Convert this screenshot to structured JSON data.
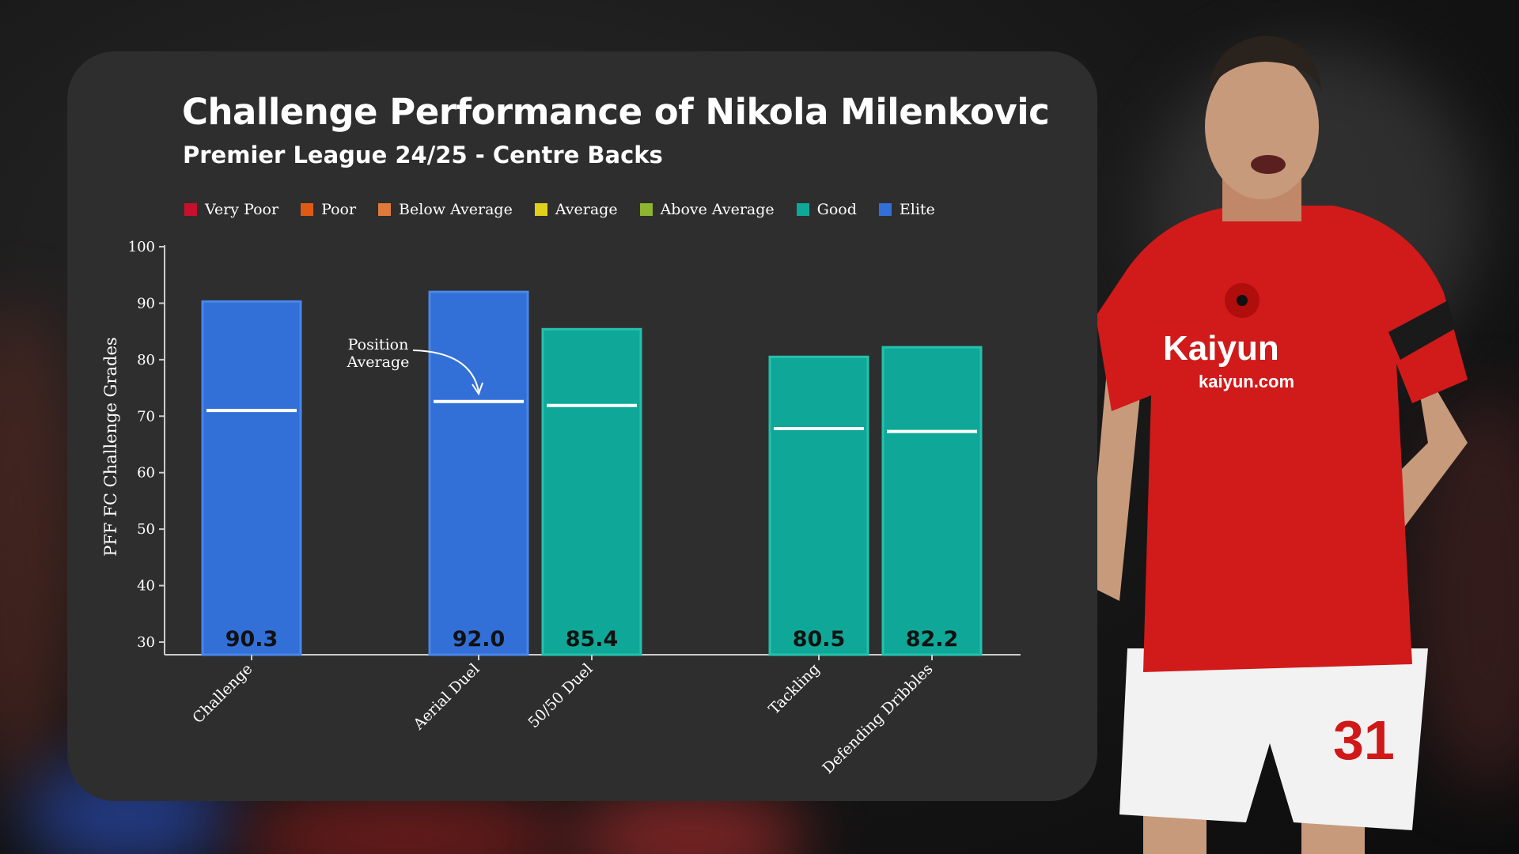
{
  "title": "Challenge Performance of Nikola Milenkovic",
  "subtitle": "Premier League 24/25 - Centre Backs",
  "legend": [
    {
      "label": "Very Poor",
      "color": "#c8102e"
    },
    {
      "label": "Poor",
      "color": "#e05a14"
    },
    {
      "label": "Below Average",
      "color": "#e07a3a"
    },
    {
      "label": "Average",
      "color": "#e2cf1b"
    },
    {
      "label": "Above Average",
      "color": "#8db52f"
    },
    {
      "label": "Good",
      "color": "#0fa898"
    },
    {
      "label": "Elite",
      "color": "#3270d8"
    }
  ],
  "annotation": {
    "line1": "Position",
    "line2": "Average"
  },
  "chart_data": {
    "type": "bar",
    "ylabel": "PFF FC Challenge Grades",
    "ylim": [
      30,
      100
    ],
    "yticks": [
      30,
      40,
      50,
      60,
      70,
      80,
      90,
      100
    ],
    "categories": [
      "Challenge",
      "Aerial Duel",
      "50/50 Duel",
      "Tackling",
      "Defending Dribbles"
    ],
    "values": [
      90.3,
      92.0,
      85.4,
      80.5,
      82.2
    ],
    "value_labels": [
      "90.3",
      "92.0",
      "85.4",
      "80.5",
      "82.2"
    ],
    "position_average": [
      71.0,
      72.6,
      71.9,
      67.8,
      67.3
    ],
    "tiers": [
      "Elite",
      "Elite",
      "Good",
      "Good",
      "Good"
    ],
    "colors": {
      "Elite": "#3270d8",
      "Good": "#0fa898",
      "Elite_edge": "#4a86e8",
      "Good_edge": "#25c0ae"
    }
  }
}
